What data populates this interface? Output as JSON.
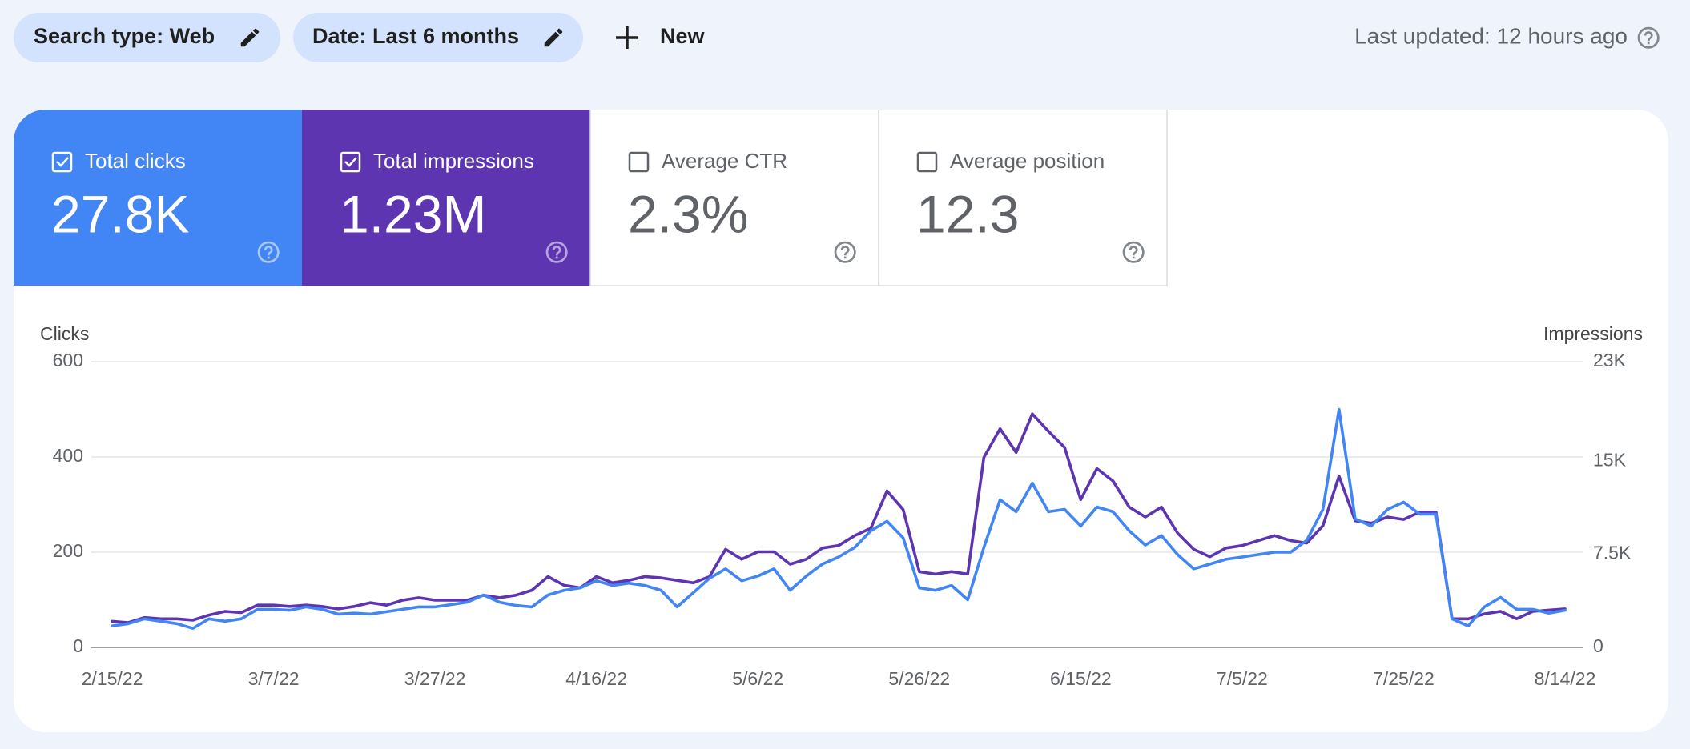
{
  "filters": [
    "Search type: Web",
    "Date: Last 6 months"
  ],
  "new_button": "New",
  "last_updated": "Last updated: 12 hours ago",
  "metrics": [
    {
      "label": "Total clicks",
      "value": "27.8K",
      "selected": true,
      "color": "#4285f4"
    },
    {
      "label": "Total impressions",
      "value": "1.23M",
      "selected": true,
      "color": "#5e35b1"
    },
    {
      "label": "Average CTR",
      "value": "2.3%",
      "selected": false,
      "color": "#ffffff"
    },
    {
      "label": "Average position",
      "value": "12.3",
      "selected": false,
      "color": "#ffffff"
    }
  ],
  "chart_data": {
    "type": "line",
    "y_label": "Clicks",
    "y2_label": "Impressions",
    "x": [
      "2/15/22",
      "2/17/22",
      "2/19/22",
      "2/21/22",
      "2/23/22",
      "2/25/22",
      "2/27/22",
      "3/1/22",
      "3/3/22",
      "3/5/22",
      "3/7/22",
      "3/9/22",
      "3/11/22",
      "3/13/22",
      "3/15/22",
      "3/17/22",
      "3/19/22",
      "3/21/22",
      "3/23/22",
      "3/25/22",
      "3/27/22",
      "3/29/22",
      "3/31/22",
      "4/2/22",
      "4/4/22",
      "4/6/22",
      "4/8/22",
      "4/10/22",
      "4/12/22",
      "4/14/22",
      "4/16/22",
      "4/18/22",
      "4/20/22",
      "4/22/22",
      "4/24/22",
      "4/26/22",
      "4/28/22",
      "4/30/22",
      "5/2/22",
      "5/4/22",
      "5/6/22",
      "5/8/22",
      "5/10/22",
      "5/12/22",
      "5/14/22",
      "5/16/22",
      "5/18/22",
      "5/20/22",
      "5/22/22",
      "5/24/22",
      "5/26/22",
      "5/28/22",
      "5/30/22",
      "6/1/22",
      "6/3/22",
      "6/5/22",
      "6/7/22",
      "6/9/22",
      "6/11/22",
      "6/13/22",
      "6/15/22",
      "6/17/22",
      "6/19/22",
      "6/21/22",
      "6/23/22",
      "6/25/22",
      "6/27/22",
      "6/29/22",
      "7/1/22",
      "7/3/22",
      "7/5/22",
      "7/7/22",
      "7/9/22",
      "7/11/22",
      "7/13/22",
      "7/15/22",
      "7/17/22",
      "7/19/22",
      "7/21/22",
      "7/23/22",
      "7/25/22",
      "7/27/22",
      "7/29/22",
      "7/31/22",
      "8/2/22",
      "8/4/22",
      "8/6/22",
      "8/8/22",
      "8/10/22",
      "8/12/22",
      "8/14/22"
    ],
    "xticks": [
      "2/15/22",
      "3/7/22",
      "3/27/22",
      "4/16/22",
      "5/6/22",
      "5/26/22",
      "6/15/22",
      "7/5/22",
      "7/25/22",
      "8/14/22"
    ],
    "ylim": [
      0,
      600
    ],
    "yticks": [
      0,
      200,
      400,
      600
    ],
    "y2lim": [
      0,
      23000
    ],
    "y2ticks": [
      0,
      {
        "value": 7500,
        "label": "7.5K"
      },
      {
        "value": 15000,
        "label": "15K"
      },
      {
        "value": 23000,
        "label": "23K"
      }
    ],
    "grid": true,
    "series": [
      {
        "color": "#4285f4",
        "axis": "y",
        "values": [
          45,
          50,
          60,
          55,
          50,
          40,
          60,
          55,
          60,
          80,
          80,
          78,
          85,
          80,
          70,
          72,
          70,
          75,
          80,
          85,
          85,
          90,
          95,
          110,
          95,
          88,
          85,
          110,
          120,
          125,
          140,
          130,
          135,
          130,
          120,
          85,
          115,
          145,
          165,
          140,
          150,
          165,
          120,
          150,
          175,
          190,
          210,
          245,
          265,
          230,
          125,
          120,
          130,
          100,
          210,
          310,
          285,
          345,
          285,
          290,
          255,
          295,
          285,
          245,
          215,
          235,
          195,
          165,
          175,
          185,
          190,
          195,
          200,
          200,
          225,
          290,
          500,
          270,
          255,
          290,
          305,
          280,
          280,
          60,
          45,
          85,
          105,
          80,
          80,
          72,
          78
        ]
      },
      {
        "color": "#5e35b1",
        "axis": "y2",
        "values": [
          2100,
          2000,
          2400,
          2300,
          2300,
          2200,
          2600,
          2900,
          2800,
          3400,
          3400,
          3300,
          3400,
          3300,
          3100,
          3300,
          3600,
          3400,
          3800,
          4000,
          3800,
          3800,
          3800,
          4200,
          4000,
          4200,
          4600,
          5700,
          5000,
          4800,
          5700,
          5200,
          5400,
          5700,
          5600,
          5400,
          5200,
          5700,
          7900,
          7100,
          7700,
          7700,
          6700,
          7100,
          8000,
          8200,
          9000,
          9600,
          12600,
          11100,
          6100,
          5900,
          6100,
          5900,
          15300,
          17600,
          15700,
          18800,
          17400,
          16100,
          11900,
          14400,
          13400,
          11300,
          10500,
          11300,
          9200,
          7900,
          7300,
          8000,
          8200,
          8600,
          9000,
          8600,
          8400,
          9800,
          13800,
          10200,
          10000,
          10500,
          10300,
          10900,
          10900,
          2300,
          2300,
          2700,
          2900,
          2300,
          2900,
          3000,
          3100
        ]
      }
    ]
  }
}
